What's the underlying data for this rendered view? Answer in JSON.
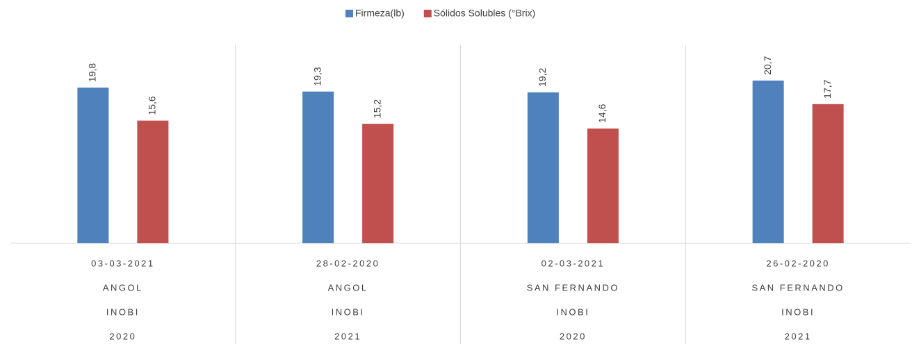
{
  "chart_data": {
    "type": "bar",
    "categories": [
      [
        "03-03-2021",
        "ANGOL",
        "INOBI",
        "2020"
      ],
      [
        "28-02-2020",
        "ANGOL",
        "INOBI",
        "2021"
      ],
      [
        "02-03-2021",
        "SAN FERNANDO",
        "INOBI",
        "2020"
      ],
      [
        "26-02-2020",
        "SAN FERNANDO",
        "INOBI",
        "2021"
      ]
    ],
    "series": [
      {
        "name": "Firmeza(lb)",
        "color": "#4f81bd",
        "values": [
          19.8,
          19.3,
          19.2,
          20.7
        ],
        "value_labels": [
          "19,8",
          "19,3",
          "19,2",
          "20,7"
        ]
      },
      {
        "name": "Sólidos Solubles (°Brix)",
        "color": "#c0504d",
        "values": [
          15.6,
          15.2,
          14.6,
          17.7
        ],
        "value_labels": [
          "15,6",
          "15,2",
          "14,6",
          "17,7"
        ]
      }
    ],
    "ylim": [
      0,
      25.2
    ],
    "legend": "top"
  }
}
